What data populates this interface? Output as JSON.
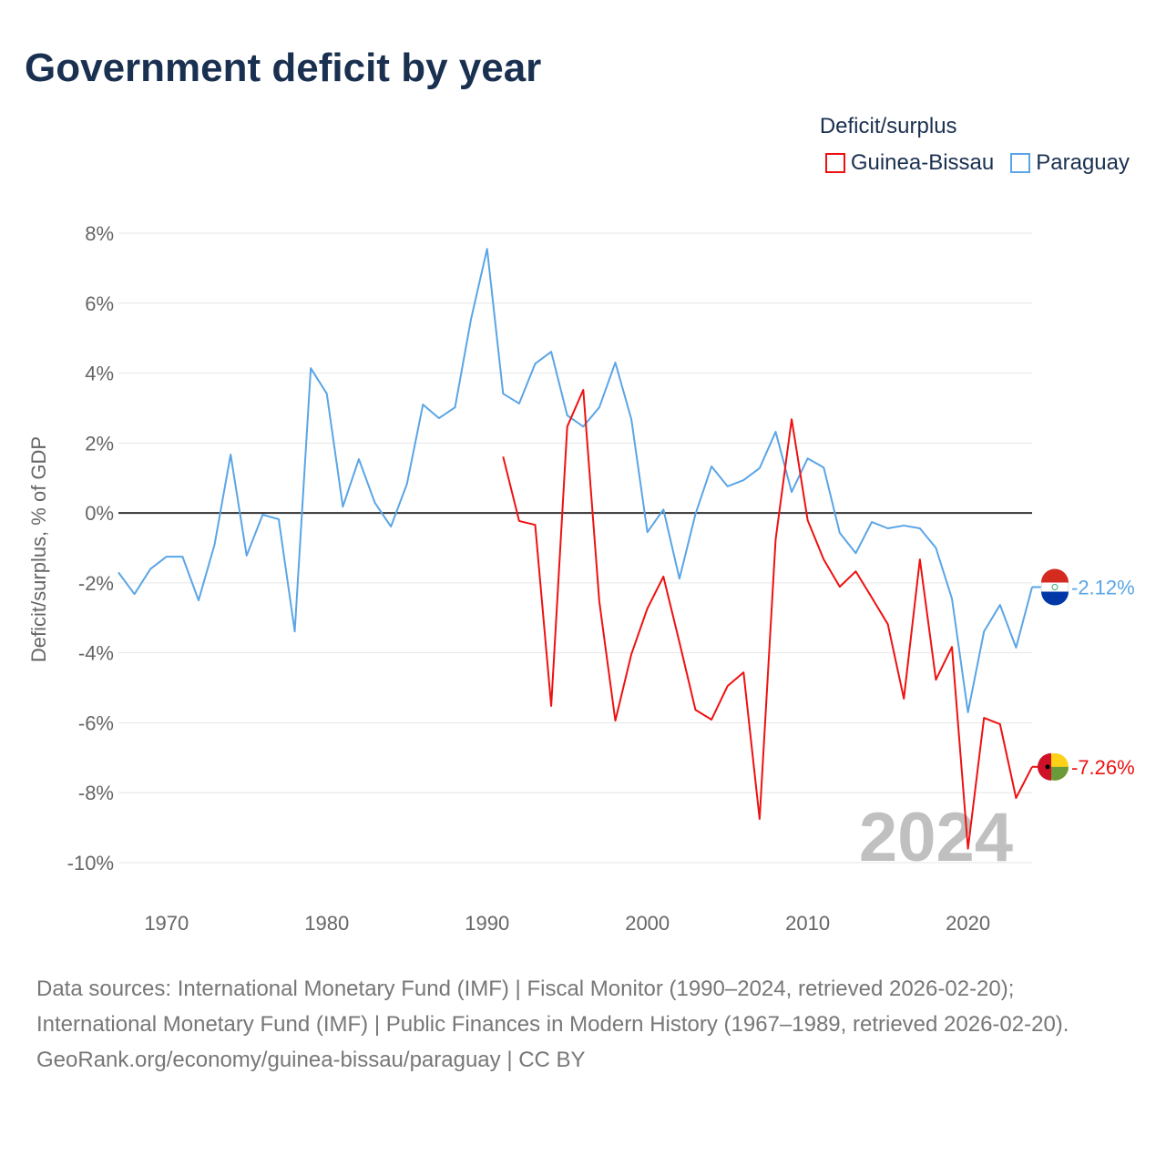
{
  "title": "Government deficit by year",
  "legend": {
    "title": "Deficit/surplus",
    "items": [
      "Guinea-Bissau",
      "Paraguay"
    ]
  },
  "footer": {
    "sources": "Data sources: International Monetary Fund (IMF) | Fiscal Monitor (1990–2024, retrieved 2026-02-20); International Monetary Fund (IMF) | Public Finances in Modern History (1967–1989, retrieved 2026-02-20).",
    "credit": "GeoRank.org/economy/guinea-bissau/paraguay | CC BY"
  },
  "chart_data": {
    "type": "line",
    "title": "Government deficit by year",
    "ylabel": "Deficit/surplus, % of GDP",
    "xlabel": "",
    "xlim": [
      1967,
      2024
    ],
    "ylim": [
      -10,
      8
    ],
    "yticks": [
      8,
      6,
      4,
      2,
      0,
      -2,
      -4,
      -6,
      -8,
      -10
    ],
    "ytick_labels": [
      "8%",
      "6%",
      "4%",
      "2%",
      "0%",
      "-2%",
      "-4%",
      "-6%",
      "-8%",
      "-10%"
    ],
    "xticks": [
      1970,
      1980,
      1990,
      2000,
      2010,
      2020
    ],
    "xtick_labels": [
      "1970",
      "1980",
      "1990",
      "2000",
      "2010",
      "2020"
    ],
    "watermark_year": "2024",
    "grid": true,
    "legend_position": "top-right",
    "series": [
      {
        "name": "Paraguay",
        "color": "#5aa5e6",
        "end_label": "-2.12%",
        "start_year": 1967,
        "values": [
          -1.7,
          -2.32,
          -1.6,
          -1.25,
          -1.25,
          -2.5,
          -0.9,
          1.67,
          -1.22,
          -0.05,
          -0.18,
          -3.39,
          4.14,
          3.41,
          0.18,
          1.54,
          0.29,
          -0.39,
          0.83,
          3.1,
          2.71,
          3.02,
          5.55,
          7.55,
          3.41,
          3.13,
          4.27,
          4.61,
          2.79,
          2.47,
          3.02,
          4.3,
          2.68,
          -0.55,
          0.1,
          -1.88,
          -0.03,
          1.33,
          0.76,
          0.94,
          1.28,
          2.32,
          0.6,
          1.56,
          1.3,
          -0.57,
          -1.15,
          -0.26,
          -0.44,
          -0.36,
          -0.44,
          -1.0,
          -2.45,
          -5.7,
          -3.39,
          -2.63,
          -3.85,
          -2.12
        ]
      },
      {
        "name": "Guinea-Bissau",
        "color": "#ee1111",
        "end_label": "-7.26%",
        "start_year": 1991,
        "values": [
          1.61,
          -0.23,
          -0.34,
          -5.52,
          2.47,
          3.52,
          -2.53,
          -5.94,
          -4.04,
          -2.73,
          -1.82,
          -3.7,
          -5.63,
          -5.91,
          -4.95,
          -4.56,
          -8.75,
          -0.76,
          2.68,
          -0.21,
          -1.33,
          -2.11,
          -1.67,
          -2.42,
          -3.18,
          -5.31,
          -1.33,
          -4.77,
          -3.83,
          -9.6,
          -5.86,
          -6.04,
          -8.15,
          -7.26
        ]
      }
    ]
  }
}
